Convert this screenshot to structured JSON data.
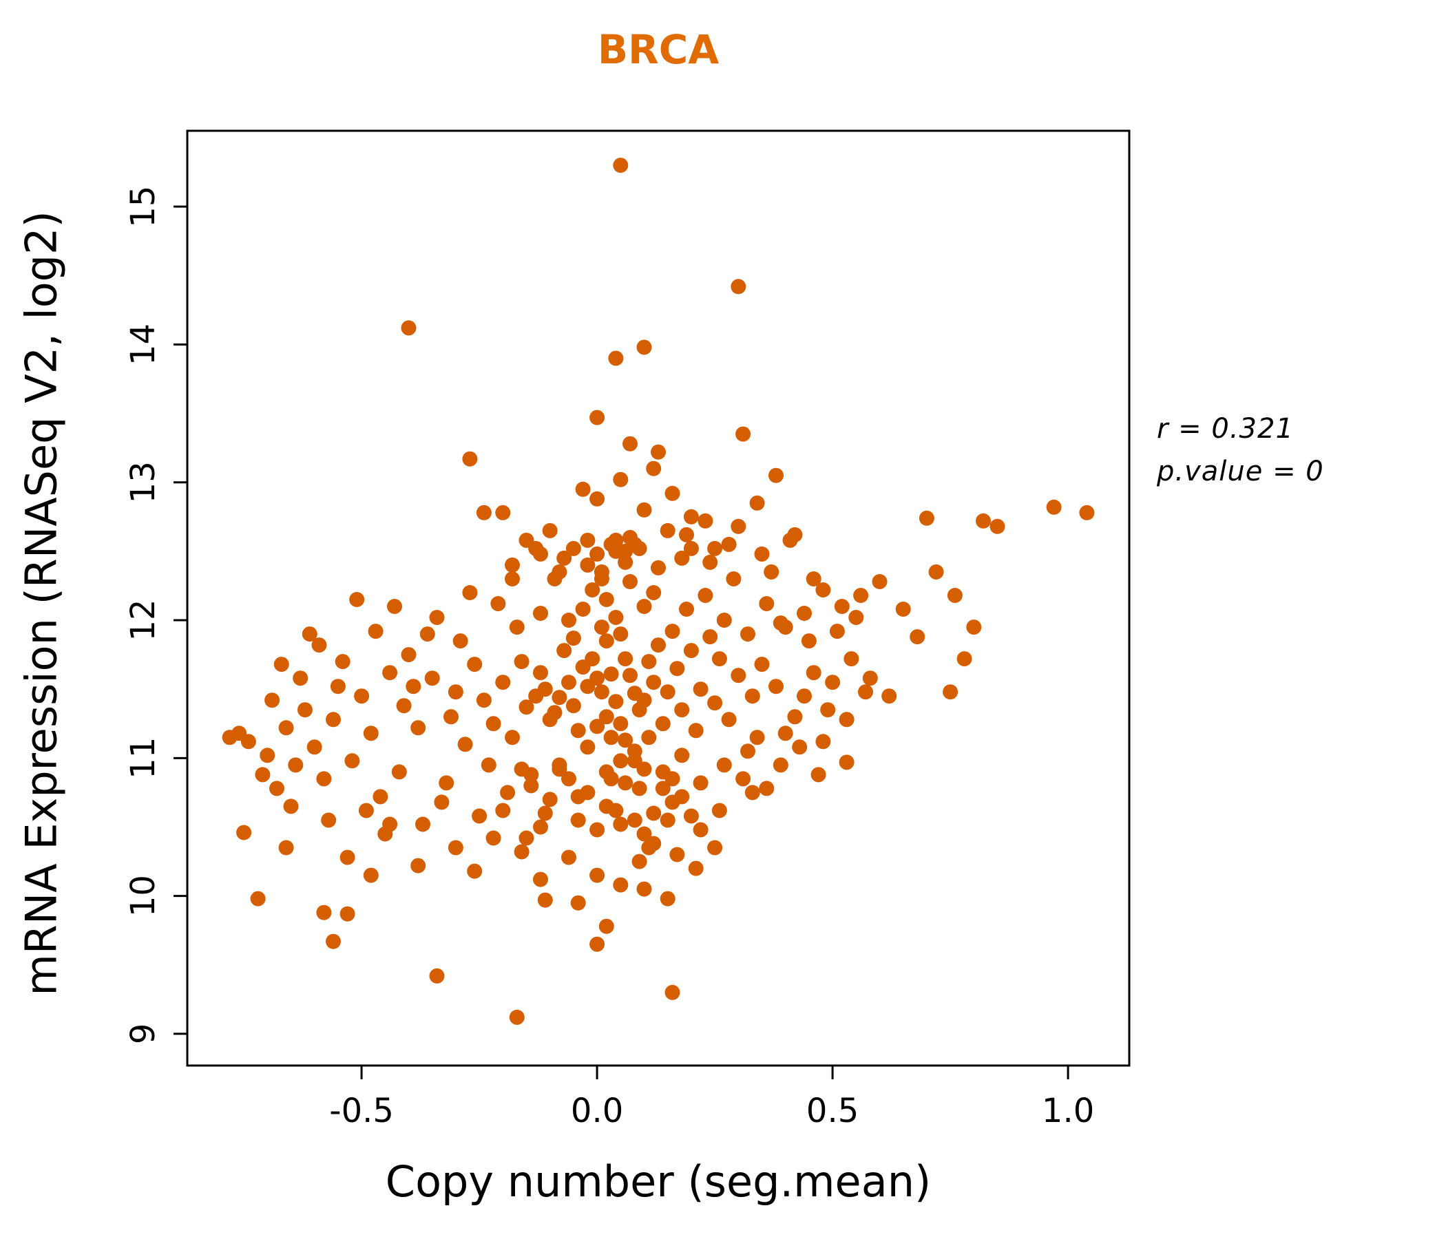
{
  "title": "BRCA",
  "title_color": "#E06C00",
  "annotation": {
    "line1": "r = 0.321",
    "line2": "p.value = 0"
  },
  "chart_data": {
    "type": "scatter",
    "title": "BRCA",
    "xlabel": "Copy number (seg.mean)",
    "ylabel": "mRNA Expression (RNASeq V2, log2)",
    "xlim": [
      -0.87,
      1.13
    ],
    "ylim": [
      8.77,
      15.55
    ],
    "xticks": [
      -0.5,
      0.0,
      0.5,
      1.0
    ],
    "yticks": [
      9,
      10,
      11,
      12,
      13,
      14,
      15
    ],
    "grid": false,
    "legend": null,
    "point_color": "#D55E00",
    "point_radius": 11,
    "stats": {
      "r": 0.321,
      "p_value": 0
    },
    "points": [
      [
        0.05,
        15.3
      ],
      [
        0.3,
        14.42
      ],
      [
        -0.4,
        14.12
      ],
      [
        0.1,
        13.98
      ],
      [
        0.04,
        13.9
      ],
      [
        0.0,
        13.47
      ],
      [
        0.31,
        13.35
      ],
      [
        0.13,
        13.22
      ],
      [
        -0.27,
        13.17
      ],
      [
        0.38,
        13.05
      ],
      [
        0.07,
        13.28
      ],
      [
        0.16,
        12.92
      ],
      [
        -0.24,
        12.78
      ],
      [
        -0.2,
        12.78
      ],
      [
        0.97,
        12.82
      ],
      [
        1.04,
        12.78
      ],
      [
        0.82,
        12.72
      ],
      [
        0.7,
        12.74
      ],
      [
        0.85,
        12.68
      ],
      [
        -0.17,
        9.12
      ],
      [
        -0.34,
        9.42
      ],
      [
        0.16,
        9.3
      ],
      [
        -0.56,
        9.67
      ],
      [
        0.0,
        9.65
      ],
      [
        -0.53,
        9.87
      ],
      [
        -0.72,
        9.98
      ],
      [
        -0.11,
        9.97
      ],
      [
        0.1,
        10.05
      ],
      [
        -0.75,
        10.46
      ],
      [
        -0.02,
        11.52
      ],
      [
        0.01,
        11.48
      ],
      [
        0.03,
        11.61
      ],
      [
        -0.05,
        11.38
      ],
      [
        0.06,
        11.72
      ],
      [
        -0.08,
        11.44
      ],
      [
        0.02,
        11.3
      ],
      [
        0.0,
        11.58
      ],
      [
        0.04,
        11.41
      ],
      [
        -0.03,
        11.66
      ],
      [
        0.05,
        11.25
      ],
      [
        -0.06,
        11.55
      ],
      [
        0.08,
        11.47
      ],
      [
        -0.01,
        11.72
      ],
      [
        0.02,
        11.85
      ],
      [
        -0.04,
        11.2
      ],
      [
        0.07,
        11.6
      ],
      [
        -0.09,
        11.33
      ],
      [
        0.01,
        11.95
      ],
      [
        0.03,
        11.15
      ],
      [
        -0.11,
        11.5
      ],
      [
        0.1,
        11.42
      ],
      [
        -0.02,
        11.08
      ],
      [
        0.05,
        11.9
      ],
      [
        -0.07,
        11.78
      ],
      [
        0.09,
        11.35
      ],
      [
        -0.12,
        11.62
      ],
      [
        0.0,
        11.23
      ],
      [
        0.04,
        12.02
      ],
      [
        -0.05,
        11.87
      ],
      [
        0.12,
        11.55
      ],
      [
        -0.1,
        11.28
      ],
      [
        0.06,
        11.13
      ],
      [
        -0.03,
        12.08
      ],
      [
        0.11,
        11.7
      ],
      [
        -0.13,
        11.45
      ],
      [
        0.02,
        12.15
      ],
      [
        0.08,
        11.05
      ],
      [
        -0.06,
        12.0
      ],
      [
        0.13,
        11.82
      ],
      [
        -0.15,
        11.37
      ],
      [
        0.05,
        10.98
      ],
      [
        -0.01,
        12.22
      ],
      [
        0.1,
        12.1
      ],
      [
        -0.08,
        10.92
      ],
      [
        0.14,
        11.25
      ],
      [
        -0.16,
        11.7
      ],
      [
        0.03,
        10.85
      ],
      [
        0.07,
        12.28
      ],
      [
        -0.12,
        12.05
      ],
      [
        0.15,
        11.48
      ],
      [
        -0.18,
        11.15
      ],
      [
        0.01,
        12.35
      ],
      [
        0.09,
        10.78
      ],
      [
        -0.14,
        10.88
      ],
      [
        0.16,
        11.92
      ],
      [
        -0.04,
        10.72
      ],
      [
        0.12,
        12.2
      ],
      [
        -0.17,
        11.95
      ],
      [
        0.06,
        12.42
      ],
      [
        0.18,
        11.35
      ],
      [
        -0.2,
        11.55
      ],
      [
        0.02,
        10.65
      ],
      [
        0.11,
        11.15
      ],
      [
        -0.09,
        12.3
      ],
      [
        0.17,
        11.65
      ],
      [
        -0.22,
        11.25
      ],
      [
        0.04,
        12.5
      ],
      [
        0.14,
        10.9
      ],
      [
        -0.19,
        10.75
      ],
      [
        0.2,
        11.78
      ],
      [
        -0.11,
        10.6
      ],
      [
        0.08,
        12.55
      ],
      [
        0.19,
        12.08
      ],
      [
        -0.21,
        12.12
      ],
      [
        0.05,
        10.52
      ],
      [
        0.22,
        11.5
      ],
      [
        -0.24,
        11.42
      ],
      [
        0.13,
        12.38
      ],
      [
        -0.07,
        12.45
      ],
      [
        0.21,
        11.2
      ],
      [
        -0.23,
        10.95
      ],
      [
        0.16,
        10.68
      ],
      [
        -0.02,
        12.58
      ],
      [
        0.24,
        11.88
      ],
      [
        -0.26,
        11.68
      ],
      [
        0.1,
        10.45
      ],
      [
        0.23,
        12.18
      ],
      [
        -0.25,
        10.58
      ],
      [
        0.07,
        12.6
      ],
      [
        0.25,
        11.4
      ],
      [
        -0.28,
        11.1
      ],
      [
        0.18,
        12.45
      ],
      [
        -0.13,
        12.52
      ],
      [
        0.26,
        11.72
      ],
      [
        -0.3,
        11.48
      ],
      [
        0.15,
        10.55
      ],
      [
        0.27,
        12.0
      ],
      [
        -0.27,
        12.2
      ],
      [
        0.12,
        10.38
      ],
      [
        0.28,
        11.28
      ],
      [
        -0.32,
        10.82
      ],
      [
        0.2,
        12.52
      ],
      [
        -0.15,
        10.42
      ],
      [
        0.3,
        11.6
      ],
      [
        -0.29,
        11.85
      ],
      [
        0.17,
        10.3
      ],
      [
        0.29,
        12.3
      ],
      [
        -0.31,
        11.3
      ],
      [
        0.09,
        10.25
      ],
      [
        0.32,
        11.9
      ],
      [
        -0.35,
        11.58
      ],
      [
        0.22,
        10.48
      ],
      [
        -0.18,
        12.4
      ],
      [
        0.33,
        11.45
      ],
      [
        -0.33,
        10.68
      ],
      [
        0.19,
        12.62
      ],
      [
        0.31,
        10.85
      ],
      [
        -0.36,
        11.9
      ],
      [
        0.24,
        12.42
      ],
      [
        0.35,
        11.68
      ],
      [
        -0.38,
        11.22
      ],
      [
        0.21,
        10.2
      ],
      [
        -0.1,
        12.65
      ],
      [
        0.36,
        12.12
      ],
      [
        -0.34,
        12.02
      ],
      [
        0.26,
        10.62
      ],
      [
        0.34,
        11.15
      ],
      [
        -0.4,
        11.75
      ],
      [
        0.28,
        12.55
      ],
      [
        0.38,
        11.52
      ],
      [
        -0.42,
        10.9
      ],
      [
        0.23,
        12.72
      ],
      [
        -0.37,
        10.52
      ],
      [
        0.4,
        11.95
      ],
      [
        -0.39,
        11.52
      ],
      [
        0.25,
        10.35
      ],
      [
        0.37,
        12.35
      ],
      [
        -0.41,
        11.38
      ],
      [
        0.3,
        12.68
      ],
      [
        -0.44,
        11.62
      ],
      [
        0.42,
        11.3
      ],
      [
        -0.46,
        10.72
      ],
      [
        0.33,
        10.75
      ],
      [
        -0.43,
        12.1
      ],
      [
        0.44,
        12.05
      ],
      [
        -0.48,
        11.18
      ],
      [
        0.35,
        12.48
      ],
      [
        -0.45,
        10.45
      ],
      [
        0.46,
        11.62
      ],
      [
        -0.5,
        11.45
      ],
      [
        0.39,
        10.95
      ],
      [
        -0.47,
        11.92
      ],
      [
        0.48,
        12.22
      ],
      [
        -0.52,
        10.98
      ],
      [
        0.41,
        12.58
      ],
      [
        -0.49,
        10.62
      ],
      [
        0.43,
        11.08
      ],
      [
        -0.54,
        11.7
      ],
      [
        0.45,
        11.85
      ],
      [
        -0.56,
        11.28
      ],
      [
        0.47,
        10.88
      ],
      [
        -0.51,
        12.15
      ],
      [
        0.5,
        11.55
      ],
      [
        -0.58,
        10.85
      ],
      [
        0.52,
        12.1
      ],
      [
        -0.55,
        11.52
      ],
      [
        0.49,
        11.35
      ],
      [
        -0.6,
        11.08
      ],
      [
        0.51,
        11.92
      ],
      [
        -0.62,
        11.35
      ],
      [
        0.53,
        11.28
      ],
      [
        -0.57,
        10.55
      ],
      [
        0.55,
        12.02
      ],
      [
        -0.64,
        10.95
      ],
      [
        0.54,
        11.72
      ],
      [
        -0.59,
        11.82
      ],
      [
        0.57,
        11.48
      ],
      [
        -0.66,
        11.22
      ],
      [
        0.56,
        12.18
      ],
      [
        -0.68,
        10.78
      ],
      [
        -0.63,
        11.58
      ],
      [
        -0.7,
        11.02
      ],
      [
        -0.65,
        10.65
      ],
      [
        -0.61,
        11.9
      ],
      [
        -0.69,
        11.42
      ],
      [
        -0.71,
        10.88
      ],
      [
        -0.67,
        11.68
      ],
      [
        -0.74,
        11.12
      ],
      [
        -0.76,
        11.18
      ],
      [
        -0.78,
        11.15
      ],
      [
        -0.66,
        10.35
      ],
      [
        -0.58,
        9.88
      ],
      [
        -0.53,
        10.28
      ],
      [
        -0.48,
        10.15
      ],
      [
        -0.44,
        10.52
      ],
      [
        -0.38,
        10.22
      ],
      [
        -0.3,
        10.35
      ],
      [
        -0.26,
        10.18
      ],
      [
        -0.22,
        10.42
      ],
      [
        -0.16,
        10.32
      ],
      [
        -0.12,
        10.12
      ],
      [
        -0.06,
        10.28
      ],
      [
        0.0,
        10.15
      ],
      [
        0.05,
        10.08
      ],
      [
        0.11,
        10.35
      ],
      [
        0.15,
        9.98
      ],
      [
        0.02,
        9.78
      ],
      [
        -0.04,
        9.95
      ],
      [
        0.08,
        10.55
      ],
      [
        -0.2,
        10.62
      ],
      [
        0.18,
        10.72
      ],
      [
        0.27,
        10.95
      ],
      [
        0.32,
        11.05
      ],
      [
        0.36,
        10.78
      ],
      [
        0.4,
        11.18
      ],
      [
        0.44,
        11.45
      ],
      [
        0.58,
        11.58
      ],
      [
        0.6,
        12.28
      ],
      [
        0.62,
        11.45
      ],
      [
        0.65,
        12.08
      ],
      [
        0.68,
        11.88
      ],
      [
        0.72,
        12.35
      ],
      [
        0.75,
        11.48
      ],
      [
        0.76,
        12.18
      ],
      [
        0.78,
        11.72
      ],
      [
        0.46,
        12.3
      ],
      [
        0.48,
        11.12
      ],
      [
        0.53,
        10.97
      ],
      [
        0.42,
        12.62
      ],
      [
        0.39,
        11.98
      ],
      [
        0.34,
        12.85
      ],
      [
        0.8,
        11.95
      ],
      [
        -0.05,
        12.52
      ],
      [
        0.0,
        12.48
      ],
      [
        0.03,
        12.55
      ],
      [
        -0.02,
        12.4
      ],
      [
        0.06,
        12.5
      ],
      [
        -0.08,
        12.35
      ],
      [
        0.01,
        12.3
      ],
      [
        0.04,
        12.58
      ],
      [
        -0.12,
        12.48
      ],
      [
        0.09,
        12.52
      ],
      [
        0.0,
        12.88
      ],
      [
        0.05,
        13.02
      ],
      [
        -0.03,
        12.95
      ],
      [
        0.1,
        12.8
      ],
      [
        0.15,
        12.65
      ],
      [
        -0.18,
        12.3
      ],
      [
        0.2,
        12.75
      ],
      [
        0.25,
        12.52
      ],
      [
        -0.15,
        12.58
      ],
      [
        0.12,
        13.1
      ],
      [
        0.02,
        10.9
      ],
      [
        0.06,
        10.82
      ],
      [
        -0.02,
        10.75
      ],
      [
        0.1,
        10.92
      ],
      [
        -0.06,
        10.85
      ],
      [
        0.14,
        10.78
      ],
      [
        -0.1,
        10.7
      ],
      [
        0.04,
        10.62
      ],
      [
        0.08,
        10.98
      ],
      [
        -0.14,
        10.8
      ],
      [
        0.16,
        10.85
      ],
      [
        -0.04,
        10.55
      ],
      [
        0.12,
        10.6
      ],
      [
        0.0,
        10.48
      ],
      [
        -0.08,
        10.95
      ],
      [
        0.18,
        11.02
      ],
      [
        -0.16,
        10.92
      ],
      [
        0.22,
        10.82
      ],
      [
        -0.12,
        10.5
      ],
      [
        0.2,
        10.58
      ]
    ]
  }
}
